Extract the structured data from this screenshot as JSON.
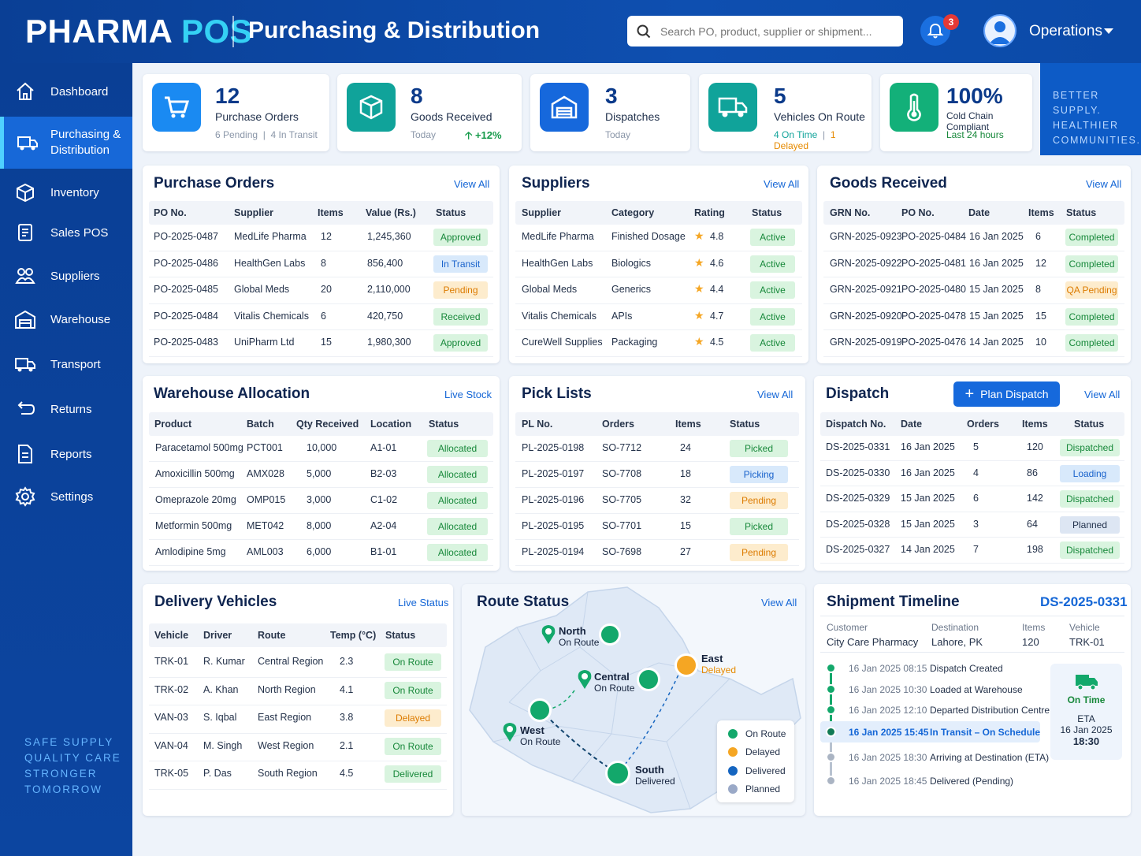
{
  "app": {
    "brand_a": "PHARMA",
    "brand_b": "POS",
    "title": "Purchasing & Distribution",
    "search_placeholder": "Search PO, product, supplier or shipment...",
    "notifications": "3",
    "user": "Operations"
  },
  "sidebar": {
    "items": [
      {
        "label": "Dashboard"
      },
      {
        "label": "Purchasing &",
        "label2": "Distribution"
      },
      {
        "label": "Inventory"
      },
      {
        "label": "Sales POS"
      },
      {
        "label": "Suppliers"
      },
      {
        "label": "Warehouse"
      },
      {
        "label": "Transport"
      },
      {
        "label": "Returns"
      },
      {
        "label": "Reports"
      },
      {
        "label": "Settings"
      }
    ],
    "tagline": [
      "SAFE SUPPLY",
      "QUALITY CARE",
      "STRONGER",
      "TOMORROW"
    ]
  },
  "kpis": [
    {
      "num": "12",
      "label": "Purchase Orders",
      "sub1": "6 Pending",
      "sep": "|",
      "sub2": "4 In Transit"
    },
    {
      "num": "8",
      "label": "Goods Received",
      "sub1": "Today",
      "trend": "+12%"
    },
    {
      "num": "3",
      "label": "Dispatches",
      "sub1": "Today"
    },
    {
      "num": "5",
      "label": "Vehicles On Route",
      "sub1": "4 On Time",
      "sep": "|",
      "sub2": "1 Delayed"
    },
    {
      "num": "100%",
      "label": "Cold Chain Compliant",
      "sub1": "Last 24 hours"
    }
  ],
  "promo": [
    "BETTER SUPPLY.",
    "HEALTHIER",
    "COMMUNITIES."
  ],
  "purchase_orders": {
    "title": "Purchase Orders",
    "link": "View All",
    "cols": [
      "PO No.",
      "Supplier",
      "Items",
      "Value (Rs.)",
      "Status"
    ],
    "rows": [
      [
        "PO-2025-0487",
        "MedLife Pharma",
        "12",
        "1,245,360",
        "Approved"
      ],
      [
        "PO-2025-0486",
        "HealthGen Labs",
        "8",
        "856,400",
        "In Transit"
      ],
      [
        "PO-2025-0485",
        "Global Meds",
        "20",
        "2,110,000",
        "Pending"
      ],
      [
        "PO-2025-0484",
        "Vitalis Chemicals",
        "6",
        "420,750",
        "Received"
      ],
      [
        "PO-2025-0483",
        "UniPharm Ltd",
        "15",
        "1,980,300",
        "Approved"
      ]
    ]
  },
  "suppliers": {
    "title": "Suppliers",
    "link": "View All",
    "cols": [
      "Supplier",
      "Category",
      "Rating",
      "Status"
    ],
    "rows": [
      [
        "MedLife Pharma",
        "Finished Dosage",
        "4.8",
        "Active"
      ],
      [
        "HealthGen Labs",
        "Biologics",
        "4.6",
        "Active"
      ],
      [
        "Global Meds",
        "Generics",
        "4.4",
        "Active"
      ],
      [
        "Vitalis Chemicals",
        "APIs",
        "4.7",
        "Active"
      ],
      [
        "CureWell Supplies",
        "Packaging",
        "4.5",
        "Active"
      ]
    ]
  },
  "goods_received": {
    "title": "Goods Received",
    "link": "View All",
    "cols": [
      "GRN No.",
      "PO No.",
      "Date",
      "Items",
      "Status"
    ],
    "rows": [
      [
        "GRN-2025-0923",
        "PO-2025-0484",
        "16 Jan 2025",
        "6",
        "Completed"
      ],
      [
        "GRN-2025-0922",
        "PO-2025-0481",
        "16 Jan 2025",
        "12",
        "Completed"
      ],
      [
        "GRN-2025-0921",
        "PO-2025-0480",
        "15 Jan 2025",
        "8",
        "QA Pending"
      ],
      [
        "GRN-2025-0920",
        "PO-2025-0478",
        "15 Jan 2025",
        "15",
        "Completed"
      ],
      [
        "GRN-2025-0919",
        "PO-2025-0476",
        "14 Jan 2025",
        "10",
        "Completed"
      ]
    ]
  },
  "warehouse": {
    "title": "Warehouse Allocation",
    "link": "Live Stock",
    "cols": [
      "Product",
      "Batch",
      "Qty Received",
      "Location",
      "Status"
    ],
    "rows": [
      [
        "Paracetamol 500mg",
        "PCT001",
        "10,000",
        "A1-01",
        "Allocated"
      ],
      [
        "Amoxicillin 500mg",
        "AMX028",
        "5,000",
        "B2-03",
        "Allocated"
      ],
      [
        "Omeprazole 20mg",
        "OMP015",
        "3,000",
        "C1-02",
        "Allocated"
      ],
      [
        "Metformin 500mg",
        "MET042",
        "8,000",
        "A2-04",
        "Allocated"
      ],
      [
        "Amlodipine 5mg",
        "AML003",
        "6,000",
        "B1-01",
        "Allocated"
      ]
    ]
  },
  "pick_lists": {
    "title": "Pick Lists",
    "link": "View All",
    "cols": [
      "PL No.",
      "Orders",
      "Items",
      "Status"
    ],
    "rows": [
      [
        "PL-2025-0198",
        "SO-7712",
        "24",
        "Picked"
      ],
      [
        "PL-2025-0197",
        "SO-7708",
        "18",
        "Picking"
      ],
      [
        "PL-2025-0196",
        "SO-7705",
        "32",
        "Pending"
      ],
      [
        "PL-2025-0195",
        "SO-7701",
        "15",
        "Picked"
      ],
      [
        "PL-2025-0194",
        "SO-7698",
        "27",
        "Pending"
      ]
    ]
  },
  "dispatch": {
    "title": "Dispatch",
    "button": "Plan Dispatch",
    "link": "View All",
    "cols": [
      "Dispatch No.",
      "Date",
      "Orders",
      "Items",
      "Status"
    ],
    "rows": [
      [
        "DS-2025-0331",
        "16 Jan 2025",
        "5",
        "120",
        "Dispatched"
      ],
      [
        "DS-2025-0330",
        "16 Jan 2025",
        "4",
        "86",
        "Loading"
      ],
      [
        "DS-2025-0329",
        "15 Jan 2025",
        "6",
        "142",
        "Dispatched"
      ],
      [
        "DS-2025-0328",
        "15 Jan 2025",
        "3",
        "64",
        "Planned"
      ],
      [
        "DS-2025-0327",
        "14 Jan 2025",
        "7",
        "198",
        "Dispatched"
      ]
    ]
  },
  "vehicles": {
    "title": "Delivery Vehicles",
    "link": "Live Status",
    "cols": [
      "Vehicle",
      "Driver",
      "Route",
      "Temp (°C)",
      "Status"
    ],
    "rows": [
      [
        "TRK-01",
        "R. Kumar",
        "Central Region",
        "2.3",
        "On Route"
      ],
      [
        "TRK-02",
        "A. Khan",
        "North Region",
        "4.1",
        "On Route"
      ],
      [
        "VAN-03",
        "S. Iqbal",
        "East Region",
        "3.8",
        "Delayed"
      ],
      [
        "VAN-04",
        "M. Singh",
        "West Region",
        "2.1",
        "On Route"
      ],
      [
        "TRK-05",
        "P. Das",
        "South Region",
        "4.5",
        "Delivered"
      ]
    ]
  },
  "route": {
    "title": "Route Status",
    "link": "View All",
    "markers": [
      {
        "name": "North",
        "status": "On Route"
      },
      {
        "name": "Central",
        "status": "On Route"
      },
      {
        "name": "East",
        "status": "Delayed"
      },
      {
        "name": "West",
        "status": "On Route"
      },
      {
        "name": "South",
        "status": "Delivered"
      }
    ],
    "legend": [
      "On Route",
      "Delayed",
      "Delivered",
      "Planned"
    ],
    "colors": {
      "on_route": "#13a86b",
      "delayed": "#f5a623",
      "delivered": "#1565c0",
      "planned": "#9aa9c7"
    }
  },
  "timeline": {
    "title": "Shipment Timeline",
    "id": "DS-2025-0331",
    "customer_label": "Customer",
    "customer": "City Care Pharmacy",
    "dest_label": "Destination",
    "dest": "Lahore, PK",
    "items_label": "Items",
    "items": "120",
    "vehicle_label": "Vehicle",
    "vehicle": "TRK-01",
    "events": [
      {
        "time": "16 Jan 2025 08:15",
        "text": "Dispatch Created"
      },
      {
        "time": "16 Jan 2025 10:30",
        "text": "Loaded at Warehouse"
      },
      {
        "time": "16 Jan 2025 12:10",
        "text": "Departed Distribution Centre"
      },
      {
        "time": "16 Jan 2025 15:45",
        "text": "In Transit – On Schedule"
      },
      {
        "time": "16 Jan 2025 18:30",
        "text": "Arriving at Destination (ETA)"
      },
      {
        "time": "16 Jan 2025 18:45",
        "text": "Delivered (Pending)"
      }
    ],
    "eta_status": "On Time",
    "eta_label": "ETA",
    "eta_date": "16 Jan 2025",
    "eta_time": "18:30"
  }
}
